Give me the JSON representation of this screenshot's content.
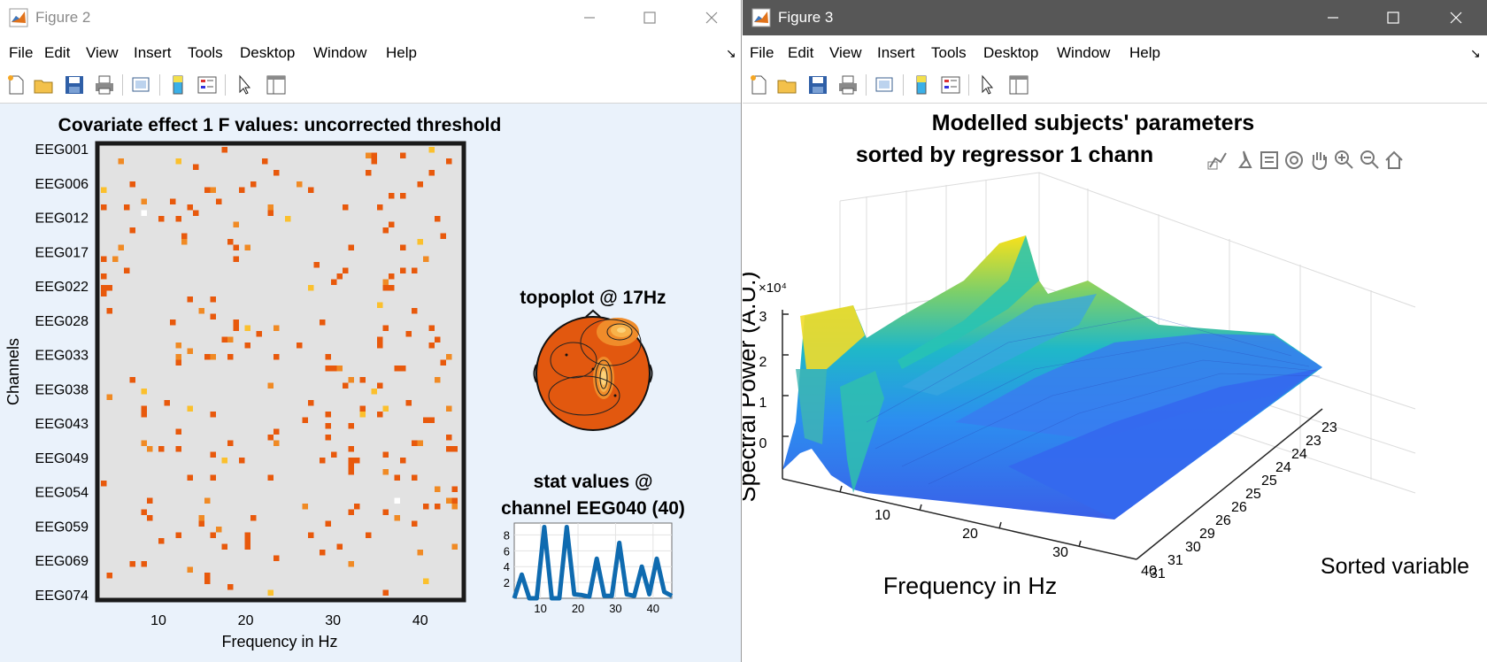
{
  "figure2": {
    "title": "Figure 2",
    "menu": [
      "File",
      "Edit",
      "View",
      "Insert",
      "Tools",
      "Desktop",
      "Window",
      "Help"
    ],
    "heatmap": {
      "title": "Covariate effect 1  F values: uncorrected threshold",
      "ylabel": "Channels",
      "xlabel": "Frequency in Hz",
      "yticks": [
        "EEG001",
        "EEG006",
        "EEG012",
        "EEG017",
        "EEG022",
        "EEG028",
        "EEG033",
        "EEG038",
        "EEG043",
        "EEG049",
        "EEG054",
        "EEG059",
        "EEG069",
        "EEG074"
      ],
      "xticks": [
        "10",
        "20",
        "30",
        "40"
      ]
    },
    "topoplot": {
      "title": "topoplot @ 17Hz"
    },
    "stat": {
      "title_line1": "stat values @",
      "title_line2": "channel EEG040 (40)",
      "yticks": [
        "2",
        "4",
        "6",
        "8"
      ],
      "xticks": [
        "10",
        "20",
        "30",
        "40"
      ]
    }
  },
  "figure3": {
    "title": "Figure 3",
    "menu": [
      "File",
      "Edit",
      "View",
      "Insert",
      "Tools",
      "Desktop",
      "Window",
      "Help"
    ],
    "surface": {
      "title_line1": "Modelled subjects' parameters",
      "title_line2": "sorted by regressor 1 chann",
      "zlabel": "Spectral Power (A.U.)",
      "zexp": "×10⁴",
      "zticks": [
        "0",
        "1",
        "2",
        "3"
      ],
      "xlabel": "Frequency in Hz",
      "xticks": [
        "10",
        "20",
        "30",
        "40"
      ],
      "ylabel": "Sorted variable",
      "yticks": [
        "31",
        "31",
        "30",
        "29",
        "26",
        "26",
        "25",
        "25",
        "24",
        "24",
        "23",
        "23"
      ]
    }
  },
  "chart_data": [
    {
      "type": "heatmap",
      "title": "Covariate effect 1  F values: uncorrected threshold",
      "xlabel": "Frequency in Hz",
      "ylabel": "Channels",
      "xlim": [
        3,
        45
      ],
      "colormap": [
        "#e8590c",
        "#f08a24",
        "#fbc02d",
        "#ffffff"
      ],
      "background": "#e2e2e2"
    },
    {
      "type": "line",
      "title": "stat values @ channel EEG040 (40)",
      "x": [
        3,
        5,
        7,
        9,
        11,
        13,
        15,
        17,
        19,
        21,
        23,
        25,
        27,
        29,
        31,
        33,
        35,
        37,
        39,
        41,
        43,
        45
      ],
      "y": [
        0,
        3,
        0,
        0,
        9,
        0,
        0,
        9,
        0.5,
        0.4,
        0.2,
        5,
        0.3,
        0.3,
        7,
        0.5,
        0.3,
        4,
        0.5,
        5,
        0.8,
        0.3
      ],
      "ylim": [
        0,
        9.5
      ],
      "xlim": [
        3,
        45
      ]
    },
    {
      "type": "area",
      "title": "Modelled subjects' parameters sorted by regressor 1 chann",
      "xlabel": "Frequency in Hz",
      "ylabel": "Sorted variable",
      "zlabel": "Spectral Power (A.U.)",
      "zlim": [
        -0.5,
        3.2
      ],
      "colormap": "parula"
    }
  ]
}
